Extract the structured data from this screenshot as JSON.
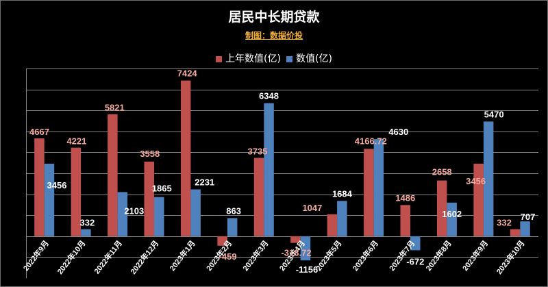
{
  "chart_data": {
    "type": "bar",
    "title": "居民中长期贷款",
    "subtitle": "制图：数据价投",
    "categories": [
      "2022年9月",
      "2022年10月",
      "2022年11月",
      "2022年12月",
      "2023年1月",
      "2023年2月",
      "2023年3月",
      "2023年4月",
      "2023年5月",
      "2023年6月",
      "2023年7月",
      "2023年8月",
      "2023年9月",
      "2023年10月"
    ],
    "series": [
      {
        "name": "上年数值(亿)",
        "values": [
          4667,
          4221,
          5821,
          3558,
          7424,
          -459,
          3735,
          -318.72,
          1047,
          4166.72,
          1486,
          2658,
          3456,
          332
        ],
        "color": "#c0504d",
        "label_color": "#f4aa9e"
      },
      {
        "name": "数值(亿)",
        "values": [
          3456,
          332,
          2103,
          1865,
          2231,
          863,
          6348,
          -1156,
          1684,
          4630,
          -672,
          1602,
          5470,
          707
        ],
        "color": "#4f81bd",
        "label_color": "#ffffff"
      }
    ],
    "ylim": [
      -2000,
      8000
    ],
    "ytick_step": 1000,
    "grid": true,
    "legend": "top-center",
    "background": "#000000"
  }
}
